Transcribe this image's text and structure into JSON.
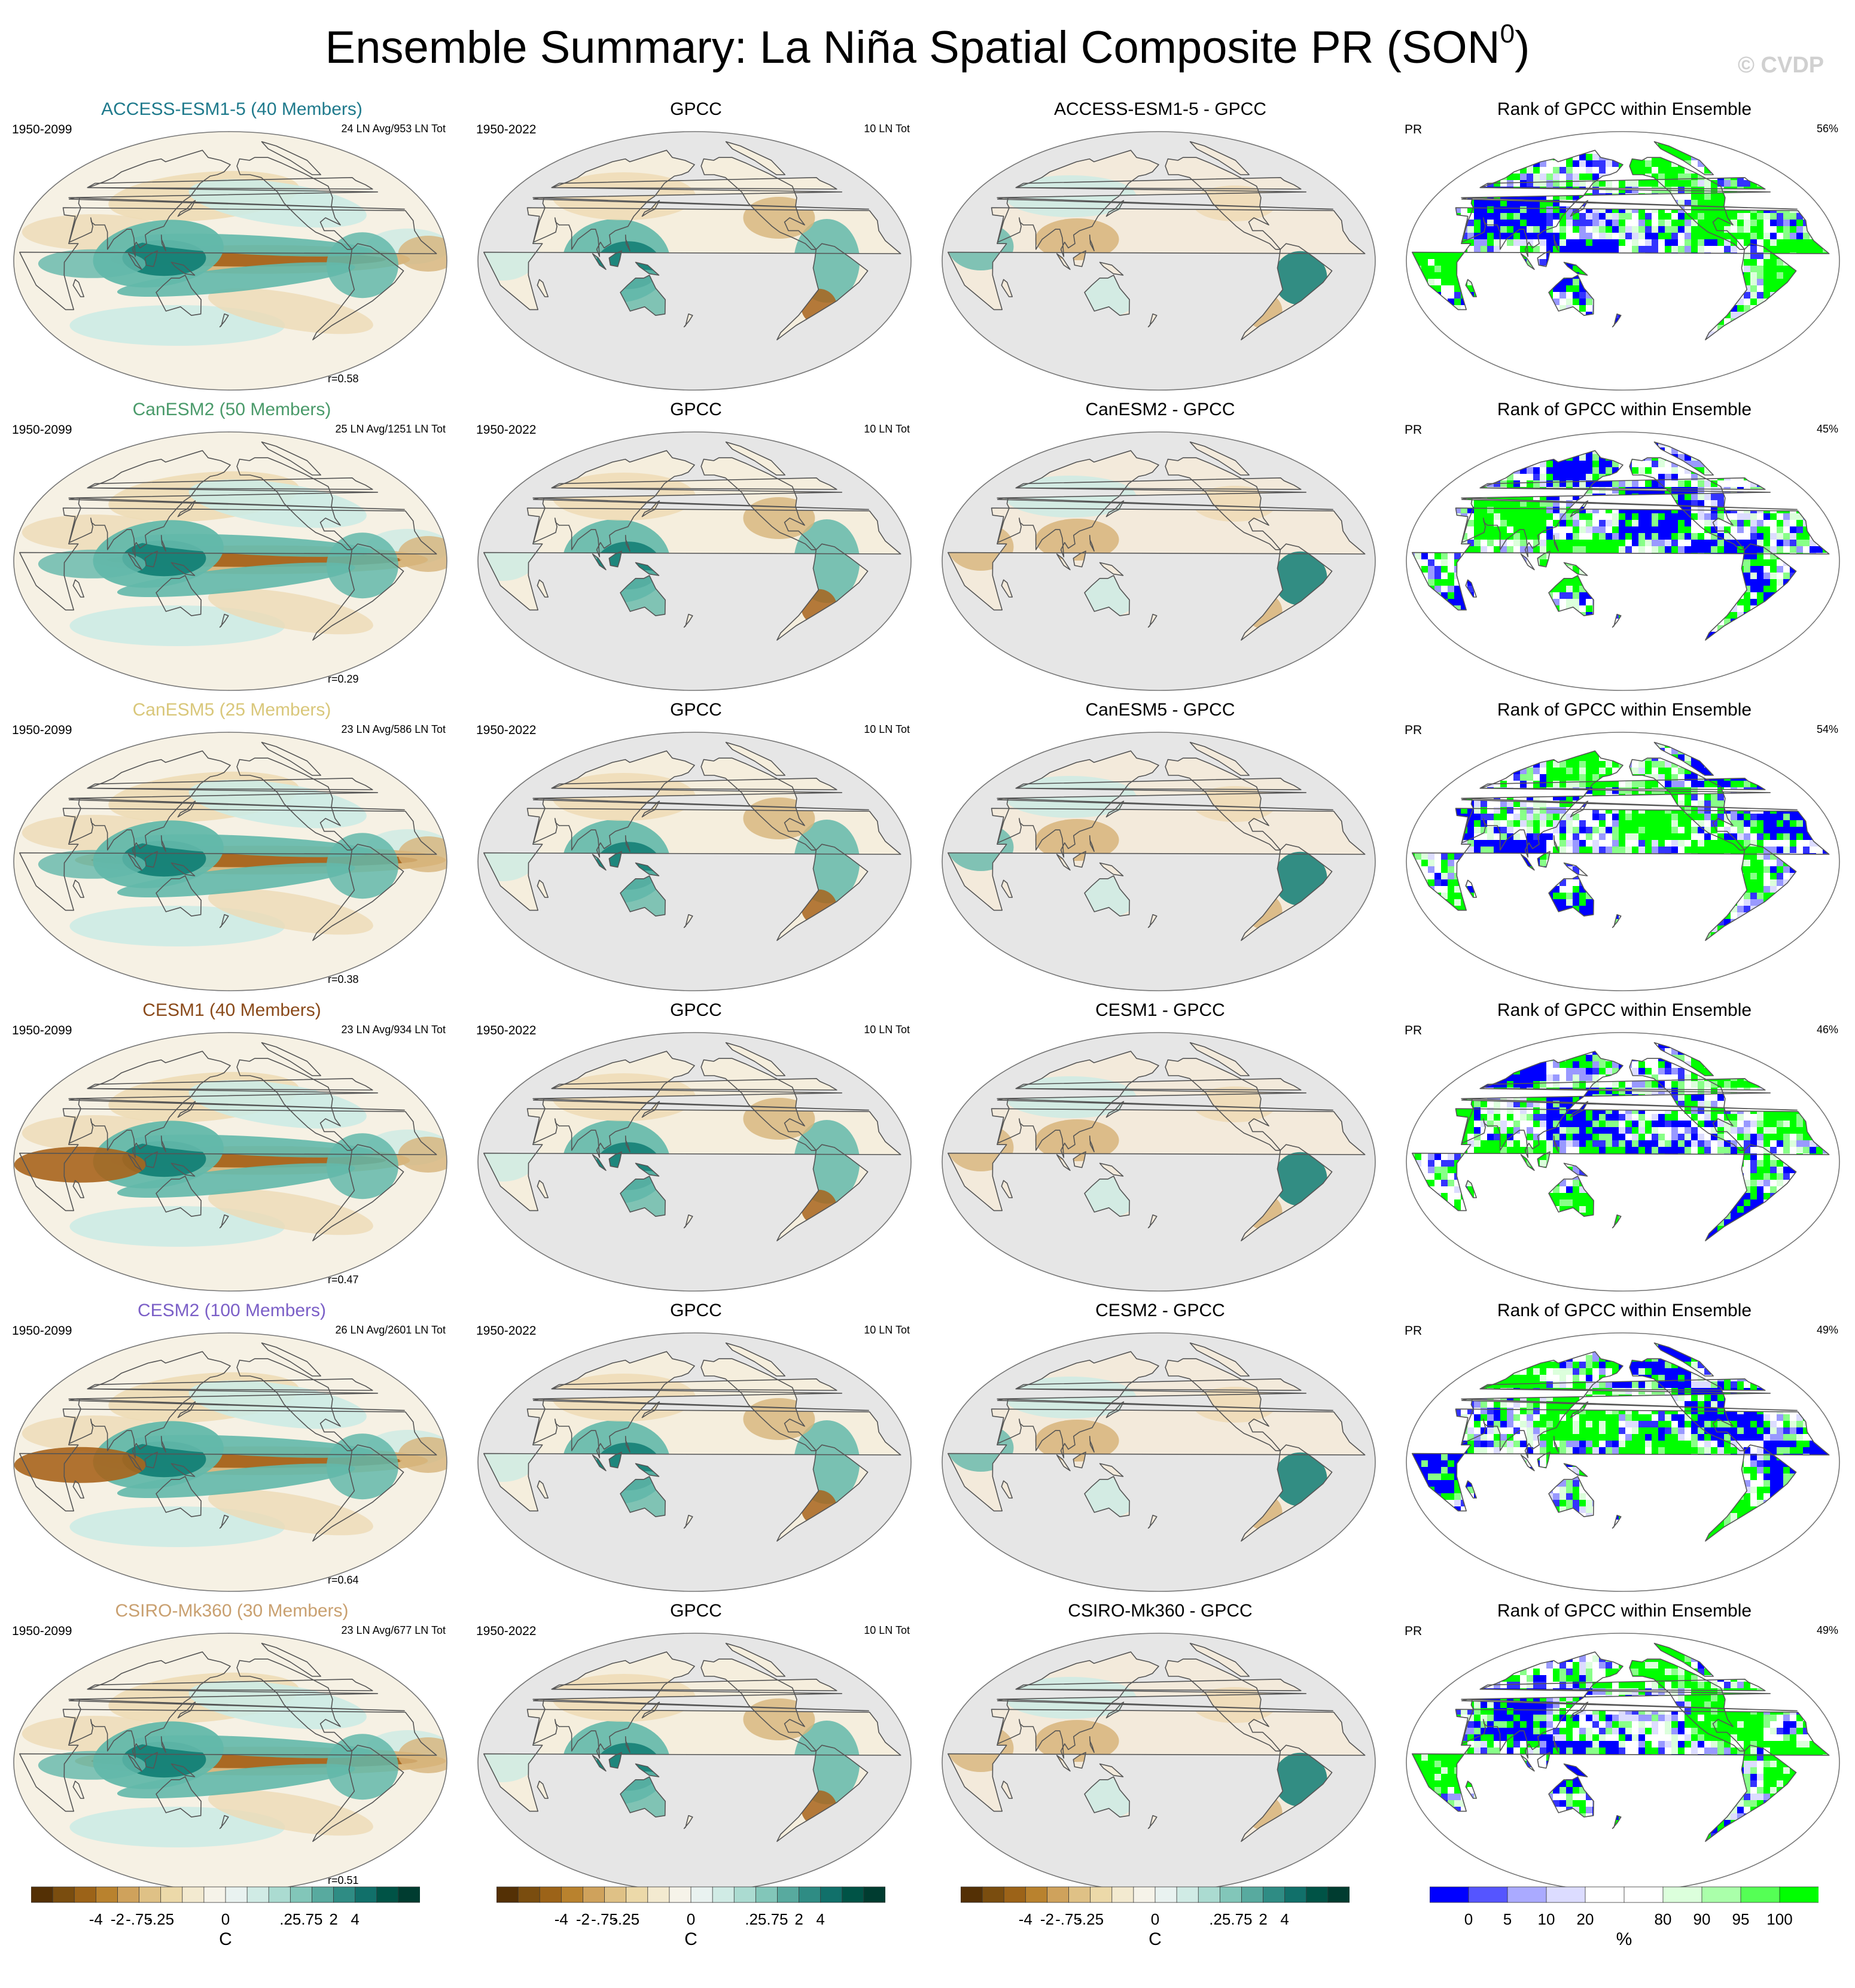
{
  "title": {
    "main": "Ensemble Summary: La Niña Spatial Composite PR (SON",
    "sup": "0",
    "close": ")"
  },
  "watermark": "© CVDP",
  "models": [
    {
      "title": "ACCESS-ESM1-5 (40 Members)",
      "title_color": "#1f7a8c",
      "years": "1950-2099",
      "ln_info": "24 LN Avg/953 LN Tot",
      "r": "r=0.58",
      "diff_title": "ACCESS-ESM1-5 - GPCC",
      "rank_pct": "56%"
    },
    {
      "title": "CanESM2 (50 Members)",
      "title_color": "#4a9a6a",
      "years": "1950-2099",
      "ln_info": "25 LN Avg/1251 LN Tot",
      "r": "r=0.29",
      "diff_title": "CanESM2 - GPCC",
      "rank_pct": "45%"
    },
    {
      "title": "CanESM5 (25 Members)",
      "title_color": "#d9c77a",
      "years": "1950-2099",
      "ln_info": "23 LN Avg/586 LN Tot",
      "r": "r=0.38",
      "diff_title": "CanESM5 - GPCC",
      "rank_pct": "54%"
    },
    {
      "title": "CESM1 (40 Members)",
      "title_color": "#8a4a1a",
      "years": "1950-2099",
      "ln_info": "23 LN Avg/934 LN Tot",
      "r": "r=0.47",
      "diff_title": "CESM1 - GPCC",
      "rank_pct": "46%"
    },
    {
      "title": "CESM2 (100 Members)",
      "title_color": "#7b5fc7",
      "years": "1950-2099",
      "ln_info": "26 LN Avg/2601 LN Tot",
      "r": "r=0.64",
      "diff_title": "CESM2 - GPCC",
      "rank_pct": "49%"
    },
    {
      "title": "CSIRO-Mk360 (30 Members)",
      "title_color": "#c9a070",
      "years": "1950-2099",
      "ln_info": "23 LN Avg/677 LN Tot",
      "r": "r=0.51",
      "diff_title": "CSIRO-Mk360 - GPCC",
      "rank_pct": "49%"
    }
  ],
  "obs": {
    "title": "GPCC",
    "years": "1950-2022",
    "ln_info": "10 LN Tot"
  },
  "rank": {
    "title": "Rank of GPCC within Ensemble",
    "var": "PR"
  },
  "colorbars": {
    "brbg": {
      "colors": [
        "#543005",
        "#7a4d0f",
        "#9c6318",
        "#b9822e",
        "#cfa25c",
        "#dfc186",
        "#ecd9a9",
        "#f3ead0",
        "#f6f3e9",
        "#e9f2f0",
        "#d0ebe5",
        "#abdbd1",
        "#82c6b9",
        "#58aa9f",
        "#2f8c84",
        "#11706a",
        "#005346",
        "#003c30"
      ],
      "labels": [
        "-4",
        "-2",
        "-.75",
        "-.25",
        "0",
        ".25",
        ".75",
        "2",
        "4"
      ],
      "unit": "C"
    },
    "rank": {
      "colors": [
        "#0000ff",
        "#5555ff",
        "#aaaaff",
        "#dcdcff",
        "#ffffff",
        "#ffffff",
        "#dcffdc",
        "#aaffaa",
        "#55ff55",
        "#00ff00"
      ],
      "labels": [
        "0",
        "5",
        "10",
        "20",
        "80",
        "90",
        "95",
        "100"
      ],
      "unit": "%"
    }
  }
}
